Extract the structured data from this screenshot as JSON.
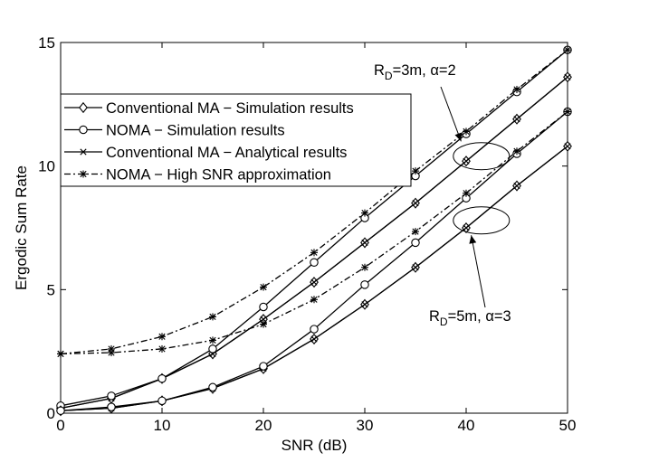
{
  "chart_data": {
    "type": "line",
    "xlabel": "SNR (dB)",
    "ylabel": "Ergodic Sum Rate",
    "xlim": [
      0,
      50
    ],
    "ylim": [
      0,
      15
    ],
    "xticks": [
      0,
      10,
      20,
      30,
      40,
      50
    ],
    "yticks": [
      0,
      5,
      10,
      15
    ],
    "grid": false,
    "legend_position": "upper-left",
    "x": [
      0,
      5,
      10,
      15,
      20,
      25,
      30,
      35,
      40,
      45,
      50
    ],
    "legend": [
      {
        "label": "Conventional MA − Simulation results",
        "marker": "diamond",
        "dash": "solid"
      },
      {
        "label": "NOMA − Simulation results",
        "marker": "circle",
        "dash": "solid"
      },
      {
        "label": "Conventional MA − Analytical results",
        "marker": "x",
        "dash": "solid"
      },
      {
        "label": "NOMA − High SNR approximation",
        "marker": "star",
        "dash": "dashdot"
      }
    ],
    "series": [
      {
        "legend_index": 0,
        "group": "RD3",
        "marker": "diamond",
        "dash": "solid",
        "values": [
          0.2,
          0.6,
          1.4,
          2.4,
          3.8,
          5.3,
          6.9,
          8.5,
          10.2,
          11.9,
          13.6
        ]
      },
      {
        "legend_index": 2,
        "group": "RD3",
        "marker": "x",
        "dash": "solid",
        "values": [
          0.2,
          0.6,
          1.4,
          2.4,
          3.8,
          5.3,
          6.9,
          8.5,
          10.2,
          11.9,
          13.6
        ]
      },
      {
        "legend_index": 1,
        "group": "RD3",
        "marker": "circle",
        "dash": "solid",
        "values": [
          0.3,
          0.7,
          1.4,
          2.6,
          4.3,
          6.1,
          7.9,
          9.6,
          11.3,
          13.0,
          14.7
        ]
      },
      {
        "legend_index": 3,
        "group": "RD3",
        "marker": "star",
        "dash": "dashdot",
        "values": [
          2.4,
          2.6,
          3.1,
          3.9,
          5.1,
          6.5,
          8.1,
          9.8,
          11.4,
          13.1,
          14.7
        ]
      },
      {
        "legend_index": 0,
        "group": "RD5",
        "marker": "diamond",
        "dash": "solid",
        "values": [
          0.1,
          0.2,
          0.5,
          1.0,
          1.8,
          3.0,
          4.4,
          5.9,
          7.5,
          9.2,
          10.8
        ]
      },
      {
        "legend_index": 2,
        "group": "RD5",
        "marker": "x",
        "dash": "solid",
        "values": [
          0.1,
          0.2,
          0.5,
          1.0,
          1.8,
          3.0,
          4.4,
          5.9,
          7.5,
          9.2,
          10.8
        ]
      },
      {
        "legend_index": 1,
        "group": "RD5",
        "marker": "circle",
        "dash": "solid",
        "values": [
          0.1,
          0.25,
          0.5,
          1.05,
          1.9,
          3.4,
          5.2,
          6.9,
          8.7,
          10.5,
          12.2
        ]
      },
      {
        "legend_index": 3,
        "group": "RD5",
        "marker": "star",
        "dash": "dashdot",
        "values": [
          2.4,
          2.45,
          2.6,
          2.95,
          3.6,
          4.6,
          5.9,
          7.35,
          8.9,
          10.6,
          12.2
        ]
      }
    ],
    "annotations": [
      {
        "id": "rd3",
        "text_main": "R",
        "text_sub": "D",
        "text_rest": "=3m, α=2",
        "ellipse_center": [
          41.5,
          10.4
        ],
        "arrow_to": [
          39.5,
          11.0
        ]
      },
      {
        "id": "rd5",
        "text_main": "R",
        "text_sub": "D",
        "text_rest": "=5m, α=3",
        "ellipse_center": [
          41.5,
          7.8
        ],
        "arrow_to": [
          40.5,
          7.2
        ]
      }
    ]
  }
}
